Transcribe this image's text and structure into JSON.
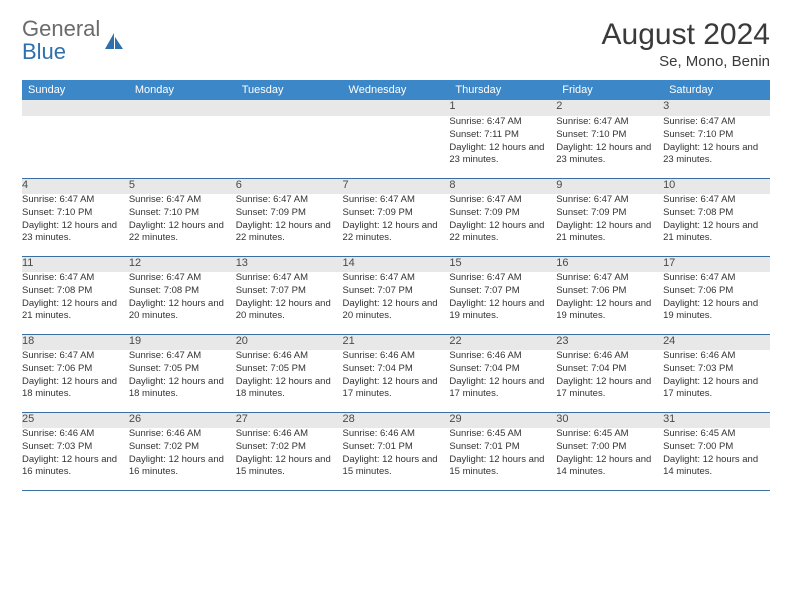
{
  "brand": {
    "text1": "General",
    "text2": "Blue",
    "icon_fill": "#2f6fad"
  },
  "title": "August 2024",
  "location": "Se, Mono, Benin",
  "dayHeaders": [
    "Sunday",
    "Monday",
    "Tuesday",
    "Wednesday",
    "Thursday",
    "Friday",
    "Saturday"
  ],
  "colors": {
    "header_bg": "#3b87c8",
    "header_text": "#ffffff",
    "daynum_bg": "#e8e8e8",
    "row_border": "#3b6fa0",
    "body_text": "#333333"
  },
  "weeks": [
    [
      {
        "n": "",
        "sr": "",
        "ss": "",
        "dl": ""
      },
      {
        "n": "",
        "sr": "",
        "ss": "",
        "dl": ""
      },
      {
        "n": "",
        "sr": "",
        "ss": "",
        "dl": ""
      },
      {
        "n": "",
        "sr": "",
        "ss": "",
        "dl": ""
      },
      {
        "n": "1",
        "sr": "Sunrise: 6:47 AM",
        "ss": "Sunset: 7:11 PM",
        "dl": "Daylight: 12 hours and 23 minutes."
      },
      {
        "n": "2",
        "sr": "Sunrise: 6:47 AM",
        "ss": "Sunset: 7:10 PM",
        "dl": "Daylight: 12 hours and 23 minutes."
      },
      {
        "n": "3",
        "sr": "Sunrise: 6:47 AM",
        "ss": "Sunset: 7:10 PM",
        "dl": "Daylight: 12 hours and 23 minutes."
      }
    ],
    [
      {
        "n": "4",
        "sr": "Sunrise: 6:47 AM",
        "ss": "Sunset: 7:10 PM",
        "dl": "Daylight: 12 hours and 23 minutes."
      },
      {
        "n": "5",
        "sr": "Sunrise: 6:47 AM",
        "ss": "Sunset: 7:10 PM",
        "dl": "Daylight: 12 hours and 22 minutes."
      },
      {
        "n": "6",
        "sr": "Sunrise: 6:47 AM",
        "ss": "Sunset: 7:09 PM",
        "dl": "Daylight: 12 hours and 22 minutes."
      },
      {
        "n": "7",
        "sr": "Sunrise: 6:47 AM",
        "ss": "Sunset: 7:09 PM",
        "dl": "Daylight: 12 hours and 22 minutes."
      },
      {
        "n": "8",
        "sr": "Sunrise: 6:47 AM",
        "ss": "Sunset: 7:09 PM",
        "dl": "Daylight: 12 hours and 22 minutes."
      },
      {
        "n": "9",
        "sr": "Sunrise: 6:47 AM",
        "ss": "Sunset: 7:09 PM",
        "dl": "Daylight: 12 hours and 21 minutes."
      },
      {
        "n": "10",
        "sr": "Sunrise: 6:47 AM",
        "ss": "Sunset: 7:08 PM",
        "dl": "Daylight: 12 hours and 21 minutes."
      }
    ],
    [
      {
        "n": "11",
        "sr": "Sunrise: 6:47 AM",
        "ss": "Sunset: 7:08 PM",
        "dl": "Daylight: 12 hours and 21 minutes."
      },
      {
        "n": "12",
        "sr": "Sunrise: 6:47 AM",
        "ss": "Sunset: 7:08 PM",
        "dl": "Daylight: 12 hours and 20 minutes."
      },
      {
        "n": "13",
        "sr": "Sunrise: 6:47 AM",
        "ss": "Sunset: 7:07 PM",
        "dl": "Daylight: 12 hours and 20 minutes."
      },
      {
        "n": "14",
        "sr": "Sunrise: 6:47 AM",
        "ss": "Sunset: 7:07 PM",
        "dl": "Daylight: 12 hours and 20 minutes."
      },
      {
        "n": "15",
        "sr": "Sunrise: 6:47 AM",
        "ss": "Sunset: 7:07 PM",
        "dl": "Daylight: 12 hours and 19 minutes."
      },
      {
        "n": "16",
        "sr": "Sunrise: 6:47 AM",
        "ss": "Sunset: 7:06 PM",
        "dl": "Daylight: 12 hours and 19 minutes."
      },
      {
        "n": "17",
        "sr": "Sunrise: 6:47 AM",
        "ss": "Sunset: 7:06 PM",
        "dl": "Daylight: 12 hours and 19 minutes."
      }
    ],
    [
      {
        "n": "18",
        "sr": "Sunrise: 6:47 AM",
        "ss": "Sunset: 7:06 PM",
        "dl": "Daylight: 12 hours and 18 minutes."
      },
      {
        "n": "19",
        "sr": "Sunrise: 6:47 AM",
        "ss": "Sunset: 7:05 PM",
        "dl": "Daylight: 12 hours and 18 minutes."
      },
      {
        "n": "20",
        "sr": "Sunrise: 6:46 AM",
        "ss": "Sunset: 7:05 PM",
        "dl": "Daylight: 12 hours and 18 minutes."
      },
      {
        "n": "21",
        "sr": "Sunrise: 6:46 AM",
        "ss": "Sunset: 7:04 PM",
        "dl": "Daylight: 12 hours and 17 minutes."
      },
      {
        "n": "22",
        "sr": "Sunrise: 6:46 AM",
        "ss": "Sunset: 7:04 PM",
        "dl": "Daylight: 12 hours and 17 minutes."
      },
      {
        "n": "23",
        "sr": "Sunrise: 6:46 AM",
        "ss": "Sunset: 7:04 PM",
        "dl": "Daylight: 12 hours and 17 minutes."
      },
      {
        "n": "24",
        "sr": "Sunrise: 6:46 AM",
        "ss": "Sunset: 7:03 PM",
        "dl": "Daylight: 12 hours and 17 minutes."
      }
    ],
    [
      {
        "n": "25",
        "sr": "Sunrise: 6:46 AM",
        "ss": "Sunset: 7:03 PM",
        "dl": "Daylight: 12 hours and 16 minutes."
      },
      {
        "n": "26",
        "sr": "Sunrise: 6:46 AM",
        "ss": "Sunset: 7:02 PM",
        "dl": "Daylight: 12 hours and 16 minutes."
      },
      {
        "n": "27",
        "sr": "Sunrise: 6:46 AM",
        "ss": "Sunset: 7:02 PM",
        "dl": "Daylight: 12 hours and 15 minutes."
      },
      {
        "n": "28",
        "sr": "Sunrise: 6:46 AM",
        "ss": "Sunset: 7:01 PM",
        "dl": "Daylight: 12 hours and 15 minutes."
      },
      {
        "n": "29",
        "sr": "Sunrise: 6:45 AM",
        "ss": "Sunset: 7:01 PM",
        "dl": "Daylight: 12 hours and 15 minutes."
      },
      {
        "n": "30",
        "sr": "Sunrise: 6:45 AM",
        "ss": "Sunset: 7:00 PM",
        "dl": "Daylight: 12 hours and 14 minutes."
      },
      {
        "n": "31",
        "sr": "Sunrise: 6:45 AM",
        "ss": "Sunset: 7:00 PM",
        "dl": "Daylight: 12 hours and 14 minutes."
      }
    ]
  ]
}
